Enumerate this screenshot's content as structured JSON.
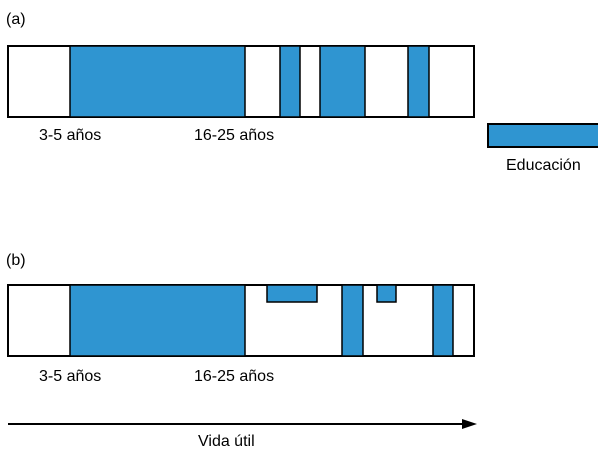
{
  "diagram": {
    "panel_a_label": "(a)",
    "panel_b_label": "(b)",
    "tick_start": "3-5 años",
    "tick_end": "16-25 años",
    "legend_label": "Educación",
    "arrow_label": "Vida útil",
    "fill_color": "#2f95d1",
    "stroke_color": "#000000"
  }
}
